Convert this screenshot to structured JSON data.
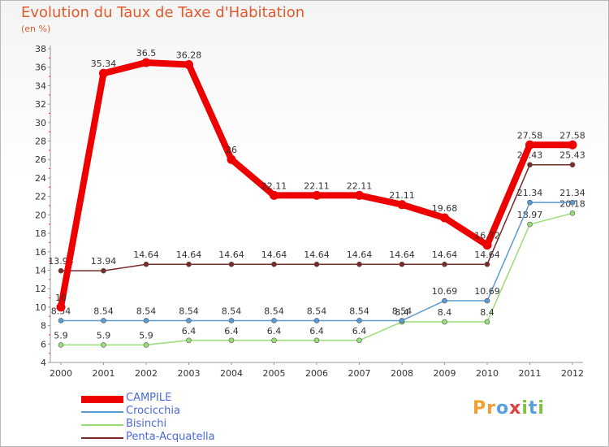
{
  "chart_data": {
    "type": "line",
    "title": "Evolution du Taux de Taxe d'Habitation",
    "subtitle": "(en %)",
    "categories": [
      "2000",
      "2001",
      "2002",
      "2003",
      "2004",
      "2005",
      "2006",
      "2007",
      "2008",
      "2009",
      "2010",
      "2011",
      "2012"
    ],
    "ylim": [
      4,
      38
    ],
    "yticks": [
      4,
      6,
      8,
      10,
      12,
      14,
      16,
      18,
      20,
      22,
      24,
      26,
      28,
      30,
      32,
      34,
      36,
      38
    ],
    "grid": false,
    "legend_position": "bottom-left",
    "series": [
      {
        "name": "Penta-Acquatella",
        "color": "#7b2a2a",
        "values": [
          13.94,
          13.94,
          14.64,
          14.64,
          14.64,
          14.64,
          14.64,
          14.64,
          14.64,
          14.64,
          14.64,
          25.43,
          25.43
        ],
        "labels": [
          "13.94",
          "13.94",
          "14.64",
          "14.64",
          "14.64",
          "14.64",
          "14.64",
          "14.64",
          "14.64",
          "14.64",
          "14.64",
          "25.43",
          "25.43"
        ]
      },
      {
        "name": "Bisinchi",
        "color": "#99dd77",
        "values": [
          5.9,
          5.9,
          5.9,
          6.4,
          6.4,
          6.4,
          6.4,
          6.4,
          8.4,
          8.4,
          8.4,
          18.97,
          20.18
        ],
        "labels": [
          "5.9",
          "5.9",
          "5.9",
          "6.4",
          "6.4",
          "6.4",
          "6.4",
          "6.4",
          "8.4",
          "8.4",
          "8.4",
          "18.97",
          "20.18"
        ]
      },
      {
        "name": "Crocicchia",
        "color": "#5b9bd5",
        "values": [
          8.54,
          8.54,
          8.54,
          8.54,
          8.54,
          8.54,
          8.54,
          8.54,
          8.54,
          10.69,
          10.69,
          21.34,
          21.34
        ],
        "labels": [
          "8.54",
          "8.54",
          "8.54",
          "8.54",
          "8.54",
          "8.54",
          "8.54",
          "8.54",
          "8.54",
          "10.69",
          "10.69",
          "21.34",
          "21.34"
        ]
      },
      {
        "name": "CAMPILE",
        "color": "#ee0000",
        "values": [
          10,
          35.34,
          36.5,
          36.28,
          26,
          22.11,
          22.11,
          22.11,
          21.11,
          19.68,
          16.72,
          27.58,
          27.58
        ],
        "labels": [
          "10",
          "35.34",
          "36.5",
          "36.28",
          "26",
          "22.11",
          "22.11",
          "22.11",
          "21.11",
          "19.68",
          "16.72",
          "27.58",
          "27.58"
        ]
      }
    ]
  },
  "legend": [
    {
      "label": "CAMPILE",
      "color": "#ee0000"
    },
    {
      "label": "Crocicchia",
      "color": "#5b9bd5"
    },
    {
      "label": "Bisinchi",
      "color": "#99dd77"
    },
    {
      "label": "Penta-Acquatella",
      "color": "#7b2a2a"
    }
  ],
  "logo": {
    "text": "Proxiti",
    "letters": [
      "P",
      "r",
      "o",
      "x",
      "i",
      "t",
      "i"
    ],
    "colors": [
      "#f0a030",
      "#f0a030",
      "#5aa0e0",
      "#e04040",
      "#80c040",
      "#5aa0e0",
      "#80c040"
    ]
  }
}
